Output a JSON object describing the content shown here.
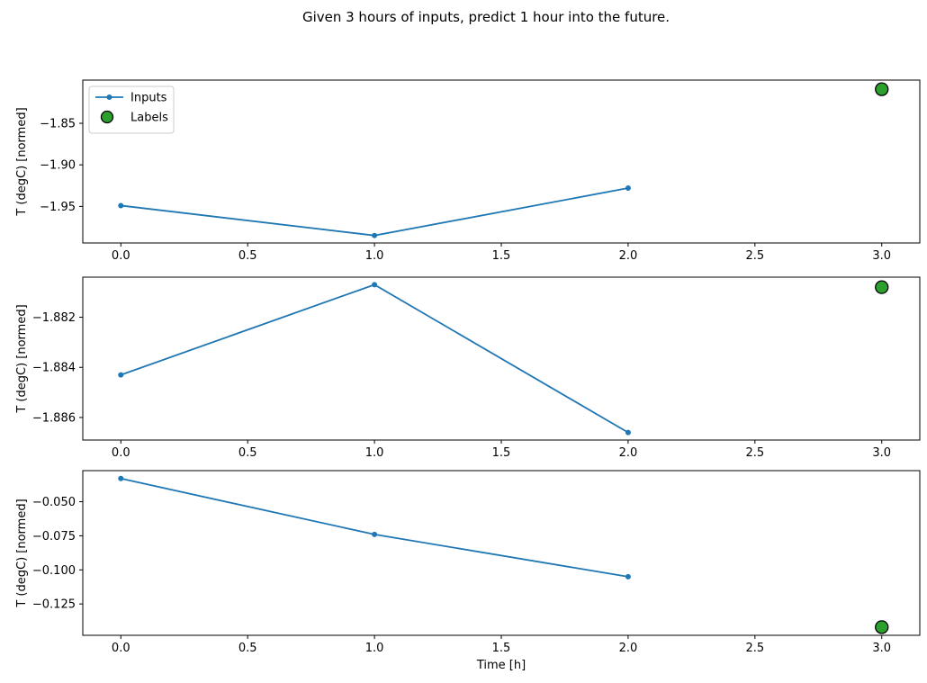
{
  "figure": {
    "title": "Given 3 hours of inputs, predict 1 hour into the future."
  },
  "colors": {
    "inputs_line": "#1f77b4",
    "labels_fill": "#2ca02c",
    "labels_edge": "#000000",
    "axis": "#000000",
    "legend_border": "#cccccc",
    "legend_bg": "#ffffff",
    "text": "#000000"
  },
  "legend": {
    "entries": [
      {
        "label": "Inputs",
        "kind": "line"
      },
      {
        "label": "Labels",
        "kind": "scatter"
      }
    ]
  },
  "chart_data": [
    {
      "type": "line",
      "title": "",
      "xlabel": "",
      "ylabel": "T (degC) [normed]",
      "xlim": [
        -0.15,
        3.15
      ],
      "ylim": [
        -1.994,
        -1.798
      ],
      "xtick_values": [
        0.0,
        0.5,
        1.0,
        1.5,
        2.0,
        2.5,
        3.0
      ],
      "xtick_labels": [
        "0.0",
        "0.5",
        "1.0",
        "1.5",
        "2.0",
        "2.5",
        "3.0"
      ],
      "ytick_values": [
        -1.85,
        -1.9,
        -1.95
      ],
      "ytick_labels": [
        "−1.85",
        "−1.90",
        "−1.95"
      ],
      "legend_visible": true,
      "series": [
        {
          "name": "Inputs",
          "kind": "line",
          "x": [
            0,
            1,
            2
          ],
          "y": [
            -1.949,
            -1.985,
            -1.928
          ]
        },
        {
          "name": "Labels",
          "kind": "scatter",
          "x": [
            3
          ],
          "y": [
            -1.809
          ]
        }
      ]
    },
    {
      "type": "line",
      "title": "",
      "xlabel": "",
      "ylabel": "T (degC) [normed]",
      "xlim": [
        -0.15,
        3.15
      ],
      "ylim": [
        -1.8869,
        -1.8804
      ],
      "xtick_values": [
        0.0,
        0.5,
        1.0,
        1.5,
        2.0,
        2.5,
        3.0
      ],
      "xtick_labels": [
        "0.0",
        "0.5",
        "1.0",
        "1.5",
        "2.0",
        "2.5",
        "3.0"
      ],
      "ytick_values": [
        -1.882,
        -1.884,
        -1.886
      ],
      "ytick_labels": [
        "−1.882",
        "−1.884",
        "−1.886"
      ],
      "legend_visible": false,
      "series": [
        {
          "name": "Inputs",
          "kind": "line",
          "x": [
            0,
            1,
            2
          ],
          "y": [
            -1.8843,
            -1.8807,
            -1.8866
          ]
        },
        {
          "name": "Labels",
          "kind": "scatter",
          "x": [
            3
          ],
          "y": [
            -1.8808
          ]
        }
      ]
    },
    {
      "type": "line",
      "title": "",
      "xlabel": "Time [h]",
      "ylabel": "T (degC) [normed]",
      "xlim": [
        -0.15,
        3.15
      ],
      "ylim": [
        -0.148,
        -0.0272
      ],
      "xtick_values": [
        0.0,
        0.5,
        1.0,
        1.5,
        2.0,
        2.5,
        3.0
      ],
      "xtick_labels": [
        "0.0",
        "0.5",
        "1.0",
        "1.5",
        "2.0",
        "2.5",
        "3.0"
      ],
      "ytick_values": [
        -0.05,
        -0.075,
        -0.1,
        -0.125
      ],
      "ytick_labels": [
        "−0.050",
        "−0.075",
        "−0.100",
        "−0.125"
      ],
      "legend_visible": false,
      "series": [
        {
          "name": "Inputs",
          "kind": "line",
          "x": [
            0,
            1,
            2
          ],
          "y": [
            -0.033,
            -0.074,
            -0.105
          ]
        },
        {
          "name": "Labels",
          "kind": "scatter",
          "x": [
            3
          ],
          "y": [
            -0.142
          ]
        }
      ]
    }
  ]
}
